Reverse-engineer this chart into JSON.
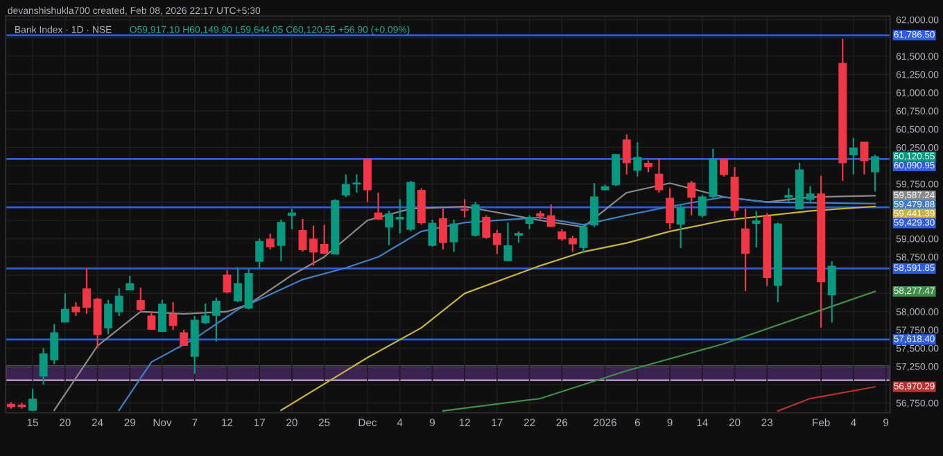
{
  "chart_data": {
    "type": "candlestick",
    "title": "Bank Index · 1D · NSE",
    "annotations": [
      "devanshishukla700 created, Feb 08, 2026 22:17 UTC+5:30",
      "O59,917.10 H60,149.90 L59,644.05 C60,120.55 +56.90 (+0.09%)",
      "59,587.24",
      "59,479.88",
      "59,441.39",
      "58,277.47",
      "56,970.29"
    ],
    "value_labels": [
      null,
      null,
      null,
      null,
      null,
      null,
      null,
      null,
      null,
      null,
      null,
      null,
      null,
      null,
      null,
      null,
      null,
      null,
      null,
      null,
      null,
      null,
      null,
      null,
      null,
      null,
      null,
      null,
      null,
      null,
      null,
      null,
      null,
      null,
      null,
      null,
      null,
      null,
      null,
      null,
      null,
      null,
      null,
      null,
      null,
      null,
      null,
      null,
      null,
      null,
      null,
      null,
      null,
      null,
      null,
      null,
      null,
      null,
      null,
      null,
      null,
      null,
      null,
      null,
      null,
      null,
      null,
      null,
      null,
      null,
      null,
      null,
      null,
      null,
      null,
      null,
      null,
      null,
      null,
      null,
      "60,120.55",
      null
    ],
    "categories": [
      null,
      null,
      "15",
      null,
      null,
      "20",
      null,
      null,
      "24",
      null,
      null,
      "29",
      null,
      null,
      "Nov",
      null,
      null,
      "7",
      null,
      null,
      "12",
      null,
      null,
      "17",
      null,
      null,
      "20",
      null,
      null,
      "25",
      null,
      null,
      null,
      "Dec",
      null,
      null,
      "4",
      null,
      null,
      "9",
      null,
      null,
      "12",
      null,
      null,
      "17",
      null,
      null,
      "22",
      null,
      null,
      "26",
      null,
      null,
      null,
      "2026",
      null,
      null,
      "6",
      null,
      null,
      "9",
      null,
      null,
      "14",
      null,
      null,
      "20",
      null,
      null,
      "23",
      null,
      null,
      null,
      null,
      "Feb",
      null,
      null,
      "4",
      null,
      null,
      "9"
    ],
    "ohlc": [
      [
        56730,
        56760,
        56670,
        56700
      ],
      [
        56720,
        56750,
        56670,
        56700
      ],
      [
        56650,
        56940,
        56640,
        56800
      ],
      [
        57120,
        57500,
        57000,
        57420
      ],
      [
        57340,
        57830,
        57280,
        57710
      ],
      [
        57860,
        58250,
        57860,
        58030
      ],
      [
        58060,
        58130,
        57940,
        58000
      ],
      [
        58310,
        58600,
        57970,
        58060
      ],
      [
        58170,
        58190,
        57500,
        57690
      ],
      [
        57780,
        58160,
        57690,
        58100
      ],
      [
        58000,
        58320,
        57940,
        58210
      ],
      [
        58300,
        58490,
        58300,
        58380
      ],
      [
        58150,
        58330,
        58000,
        58030
      ],
      [
        57940,
        58000,
        57750,
        57760
      ],
      [
        57730,
        58160,
        57720,
        58100
      ],
      [
        57960,
        58130,
        57750,
        57810
      ],
      [
        57710,
        57750,
        57530,
        57540
      ],
      [
        57390,
        57940,
        57150,
        57880
      ],
      [
        57850,
        58110,
        57830,
        57940
      ],
      [
        57950,
        58190,
        57590,
        58140
      ],
      [
        58500,
        58570,
        58250,
        58270
      ],
      [
        58150,
        58600,
        58130,
        58380
      ],
      [
        58050,
        58600,
        58030,
        58520
      ],
      [
        58690,
        59000,
        58600,
        58960
      ],
      [
        58990,
        59070,
        58850,
        58890
      ],
      [
        58910,
        59260,
        58690,
        59220
      ],
      [
        59320,
        59410,
        59130,
        59350
      ],
      [
        59110,
        59270,
        58820,
        58850
      ],
      [
        58990,
        59180,
        58630,
        58820
      ],
      [
        58920,
        59190,
        58790,
        58800
      ],
      [
        58790,
        59540,
        58790,
        59520
      ],
      [
        59600,
        59880,
        59570,
        59740
      ],
      [
        59750,
        59880,
        59630,
        59760
      ],
      [
        60090,
        60090,
        59500,
        59670
      ],
      [
        59350,
        59630,
        59260,
        59270
      ],
      [
        59160,
        59380,
        58910,
        59340
      ],
      [
        59270,
        59540,
        59070,
        59290
      ],
      [
        59130,
        59790,
        59100,
        59770
      ],
      [
        59660,
        59690,
        59190,
        59220
      ],
      [
        58910,
        59260,
        58890,
        59210
      ],
      [
        59270,
        59410,
        58850,
        58950
      ],
      [
        58960,
        59260,
        58820,
        59200
      ],
      [
        59400,
        59540,
        59290,
        59390
      ],
      [
        59050,
        59500,
        59030,
        59460
      ],
      [
        59290,
        59320,
        59000,
        59020
      ],
      [
        59070,
        59120,
        58790,
        58920
      ],
      [
        58700,
        59220,
        58690,
        58900
      ],
      [
        59050,
        59100,
        58940,
        59070
      ],
      [
        59210,
        59320,
        59130,
        59290
      ],
      [
        59340,
        59380,
        59260,
        59310
      ],
      [
        59310,
        59470,
        59160,
        59170
      ],
      [
        59090,
        59130,
        58970,
        59000
      ],
      [
        59000,
        59040,
        58820,
        58930
      ],
      [
        58880,
        59190,
        58800,
        59160
      ],
      [
        59190,
        59760,
        59160,
        59570
      ],
      [
        59670,
        59740,
        59660,
        59710
      ],
      [
        59740,
        60160,
        59720,
        60150
      ],
      [
        60350,
        60430,
        59880,
        60040
      ],
      [
        59940,
        60320,
        59850,
        60110
      ],
      [
        60030,
        60070,
        59910,
        59990
      ],
      [
        59880,
        60100,
        59630,
        59670
      ],
      [
        59550,
        59690,
        59130,
        59220
      ],
      [
        59200,
        59470,
        58870,
        59430
      ],
      [
        59760,
        59790,
        59320,
        59570
      ],
      [
        59320,
        59600,
        59290,
        59570
      ],
      [
        59580,
        60230,
        59540,
        60090
      ],
      [
        60090,
        60090,
        59850,
        59880
      ],
      [
        59840,
        59980,
        59290,
        59390
      ],
      [
        59130,
        59410,
        58280,
        58800
      ],
      [
        59210,
        59380,
        58880,
        59240
      ],
      [
        59300,
        59350,
        58350,
        58470
      ],
      [
        58360,
        59220,
        58130,
        59200
      ],
      [
        59570,
        59690,
        59500,
        59590
      ],
      [
        59410,
        60040,
        59410,
        59940
      ],
      [
        59540,
        59720,
        59500,
        59610
      ],
      [
        59610,
        59860,
        57780,
        58410
      ],
      [
        58230,
        58690,
        57850,
        58620
      ],
      [
        61400,
        61740,
        59790,
        60040
      ],
      [
        60150,
        60380,
        59880,
        60240
      ],
      [
        60320,
        60320,
        59880,
        60070
      ],
      [
        59917.1,
        60149.9,
        59644.05,
        60120.55
      ],
      null
    ],
    "colors": [
      "#f23645",
      "#f23645",
      "#089981",
      "#089981",
      "#089981",
      "#089981",
      "#f23645",
      "#f23645",
      "#f23645",
      "#089981",
      "#089981",
      "#089981",
      "#f23645",
      "#f23645",
      "#089981",
      "#f23645",
      "#f23645",
      "#089981",
      "#089981",
      "#089981",
      "#f23645",
      "#089981",
      "#089981",
      "#089981",
      "#f23645",
      "#089981",
      "#089981",
      "#f23645",
      "#f23645",
      "#f23645",
      "#089981",
      "#089981",
      "#089981",
      "#f23645",
      "#f23645",
      "#089981",
      "#089981",
      "#089981",
      "#f23645",
      "#089981",
      "#f23645",
      "#089981",
      "#f23645",
      "#089981",
      "#f23645",
      "#f23645",
      "#089981",
      "#089981",
      "#089981",
      "#f23645",
      "#f23645",
      "#f23645",
      "#f23645",
      "#089981",
      "#089981",
      "#089981",
      "#089981",
      "#f23645",
      "#089981",
      "#f23645",
      "#f23645",
      "#f23645",
      "#089981",
      "#f23645",
      "#089981",
      "#089981",
      "#f23645",
      "#f23645",
      "#f23645",
      "#089981",
      "#f23645",
      "#089981",
      "#089981",
      "#089981",
      "#089981",
      "#f23645",
      "#089981",
      "#f23645",
      "#089981",
      "#f23645",
      "#089981",
      null
    ],
    "series": [
      {
        "type": "line",
        "color": "#8a8a8a",
        "values": [
          null,
          null,
          null,
          null,
          56650,
          null,
          null,
          null,
          57530,
          null,
          null,
          null,
          58000,
          null,
          null,
          null,
          57970,
          null,
          null,
          null,
          58000,
          null,
          58100,
          null,
          null,
          null,
          58500,
          null,
          null,
          58750,
          null,
          null,
          null,
          59250,
          null,
          null,
          null,
          59410,
          null,
          null,
          null,
          null,
          59440,
          null,
          null,
          null,
          null,
          null,
          null,
          59250,
          null,
          null,
          null,
          59160,
          null,
          null,
          null,
          59630,
          null,
          null,
          null,
          59760,
          null,
          null,
          null,
          null,
          59570,
          null,
          null,
          null,
          59500,
          null,
          null,
          null,
          59570,
          null,
          null,
          null,
          null,
          null,
          59587.24,
          null
        ]
      },
      {
        "type": "line",
        "color": "#3f7fc4",
        "values": [
          null,
          null,
          null,
          null,
          null,
          null,
          null,
          null,
          null,
          null,
          56650,
          null,
          null,
          57310,
          null,
          null,
          null,
          57630,
          null,
          null,
          null,
          58030,
          null,
          null,
          null,
          null,
          null,
          58440,
          null,
          null,
          null,
          58600,
          null,
          null,
          58750,
          null,
          null,
          null,
          59100,
          null,
          null,
          null,
          59220,
          null,
          null,
          null,
          null,
          null,
          null,
          59290,
          null,
          null,
          null,
          59190,
          null,
          null,
          null,
          59320,
          null,
          null,
          null,
          59440,
          null,
          null,
          null,
          null,
          59570,
          null,
          null,
          null,
          59500,
          null,
          null,
          null,
          null,
          null,
          null,
          null,
          null,
          null,
          59479.88,
          null
        ]
      },
      {
        "type": "line",
        "color": "#c8b43c",
        "values": [
          null,
          null,
          null,
          null,
          null,
          null,
          null,
          null,
          null,
          null,
          null,
          null,
          null,
          null,
          null,
          null,
          null,
          null,
          null,
          null,
          null,
          null,
          null,
          null,
          null,
          56650,
          null,
          null,
          null,
          null,
          null,
          null,
          null,
          57370,
          null,
          null,
          null,
          null,
          57780,
          null,
          null,
          null,
          58250,
          null,
          null,
          null,
          null,
          null,
          null,
          58630,
          null,
          null,
          null,
          58820,
          null,
          null,
          null,
          58940,
          null,
          null,
          null,
          59100,
          null,
          null,
          null,
          null,
          59250,
          null,
          null,
          null,
          null,
          null,
          null,
          null,
          59380,
          null,
          null,
          null,
          null,
          null,
          59441.39,
          null
        ]
      },
      {
        "type": "line",
        "color": "#3e8e4a",
        "values": [
          null,
          null,
          null,
          null,
          null,
          null,
          null,
          null,
          null,
          null,
          null,
          null,
          null,
          null,
          null,
          null,
          null,
          null,
          null,
          null,
          null,
          null,
          null,
          null,
          null,
          null,
          null,
          null,
          null,
          null,
          null,
          null,
          null,
          null,
          null,
          null,
          null,
          null,
          null,
          null,
          56640,
          null,
          null,
          null,
          null,
          null,
          null,
          null,
          null,
          56810,
          null,
          null,
          null,
          null,
          null,
          null,
          null,
          57190,
          null,
          null,
          null,
          null,
          null,
          null,
          null,
          null,
          57560,
          null,
          null,
          null,
          null,
          null,
          null,
          null,
          57970,
          null,
          null,
          null,
          null,
          null,
          58277.47,
          null
        ]
      },
      {
        "type": "line",
        "color": "#b83232",
        "values": [
          null,
          null,
          null,
          null,
          null,
          null,
          null,
          null,
          null,
          null,
          null,
          null,
          null,
          null,
          null,
          null,
          null,
          null,
          null,
          null,
          null,
          null,
          null,
          null,
          null,
          null,
          null,
          null,
          null,
          null,
          null,
          null,
          null,
          null,
          null,
          null,
          null,
          null,
          null,
          null,
          null,
          null,
          null,
          null,
          null,
          null,
          null,
          null,
          null,
          null,
          null,
          null,
          null,
          null,
          null,
          null,
          null,
          null,
          null,
          null,
          null,
          null,
          null,
          null,
          null,
          null,
          null,
          null,
          null,
          null,
          null,
          56640,
          null,
          null,
          56810,
          null,
          null,
          null,
          null,
          null,
          56970.29,
          null
        ]
      }
    ],
    "ref_lines": [
      {
        "axis": "y",
        "value": 61786.5,
        "label": "61,786.50",
        "color": "#2f5de0"
      },
      {
        "axis": "y",
        "value": 60090.95,
        "label": "60,090.95",
        "color": "#2f5de0"
      },
      {
        "axis": "y",
        "value": 59429.3,
        "label": "59,429.30",
        "color": "#2f5de0"
      },
      {
        "axis": "y",
        "value": 58591.85,
        "label": "58,591.85",
        "color": "#2f5de0"
      },
      {
        "axis": "y",
        "value": 57618.4,
        "label": "57,618.40",
        "color": "#2f5de0"
      }
    ],
    "bands": [
      {
        "axis": "y",
        "from": 57060,
        "to": 57250,
        "color": "#3a2350"
      }
    ],
    "ylim": [
      56616,
      62050
    ],
    "yticks": [
      {
        "value": 56750,
        "label": "56,750.00"
      },
      {
        "value": 57000,
        "label": null
      },
      {
        "value": 57250,
        "label": "57,250.00"
      },
      {
        "value": 57500,
        "label": "57,500.00"
      },
      {
        "value": 57750,
        "label": "57,750.00"
      },
      {
        "value": 58000,
        "label": "58,000.00"
      },
      {
        "value": 58250,
        "label": null
      },
      {
        "value": 58500,
        "label": null
      },
      {
        "value": 58750,
        "label": "58,750.00"
      },
      {
        "value": 59000,
        "label": "59,000.00"
      },
      {
        "value": 59250,
        "label": null
      },
      {
        "value": 59500,
        "label": null
      },
      {
        "value": 59750,
        "label": "59,750.00"
      },
      {
        "value": 60000,
        "label": null
      },
      {
        "value": 60250,
        "label": "60,250.00"
      },
      {
        "value": 60500,
        "label": "60,500.00"
      },
      {
        "value": 60750,
        "label": "60,750.00"
      },
      {
        "value": 61000,
        "label": "61,000.00"
      },
      {
        "value": 61250,
        "label": "61,250.00"
      },
      {
        "value": 61500,
        "label": "61,500.00"
      },
      {
        "value": 61750,
        "label": null
      },
      {
        "value": 62000,
        "label": "62,000.00"
      }
    ],
    "grid": true,
    "legend": false
  }
}
